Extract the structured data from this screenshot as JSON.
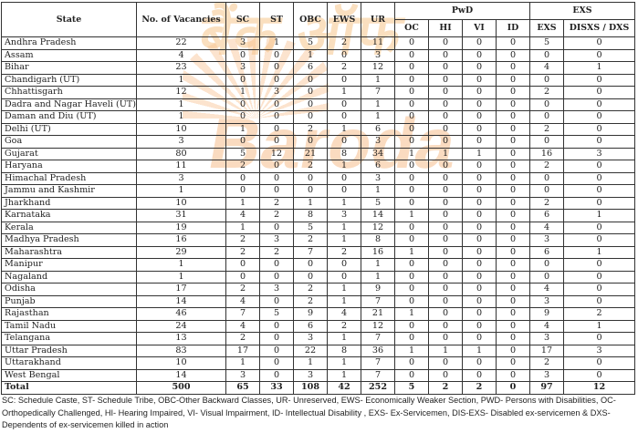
{
  "watermark": {
    "line1": "बैंक ऑफ",
    "line2": "Baroda"
  },
  "table": {
    "headers": {
      "state": "State",
      "vacancies": "No. of Vacancies",
      "sc": "SC",
      "st": "ST",
      "obc": "OBC",
      "ews": "EWS",
      "ur": "UR",
      "pwd_group": "PwD",
      "pwd": [
        "OC",
        "HI",
        "VI",
        "ID"
      ],
      "exs_group": "EXS",
      "exs": [
        "EXS",
        "DISXS / DXS"
      ]
    },
    "rows": [
      [
        "Andhra Pradesh",
        "22",
        "3",
        "1",
        "5",
        "2",
        "11",
        "0",
        "0",
        "0",
        "0",
        "5",
        "0"
      ],
      [
        "Assam",
        "4",
        "0",
        "0",
        "1",
        "0",
        "3",
        "0",
        "0",
        "0",
        "0",
        "0",
        "0"
      ],
      [
        "Bihar",
        "23",
        "3",
        "0",
        "6",
        "2",
        "12",
        "0",
        "0",
        "0",
        "0",
        "4",
        "1"
      ],
      [
        "Chandigarh (UT)",
        "1",
        "0",
        "0",
        "0",
        "0",
        "1",
        "0",
        "0",
        "0",
        "0",
        "0",
        "0"
      ],
      [
        "Chhattisgarh",
        "12",
        "1",
        "3",
        "0",
        "1",
        "7",
        "0",
        "0",
        "0",
        "0",
        "2",
        "0"
      ],
      [
        "Dadra and Nagar Haveli (UT)",
        "1",
        "0",
        "0",
        "0",
        "0",
        "1",
        "0",
        "0",
        "0",
        "0",
        "0",
        "0"
      ],
      [
        "Daman and Diu (UT)",
        "1",
        "0",
        "0",
        "0",
        "0",
        "1",
        "0",
        "0",
        "0",
        "0",
        "0",
        "0"
      ],
      [
        "Delhi (UT)",
        "10",
        "1",
        "0",
        "2",
        "1",
        "6",
        "0",
        "0",
        "0",
        "0",
        "2",
        "0"
      ],
      [
        "Goa",
        "3",
        "0",
        "0",
        "0",
        "0",
        "3",
        "0",
        "0",
        "0",
        "0",
        "0",
        "0"
      ],
      [
        "Gujarat",
        "80",
        "5",
        "12",
        "21",
        "8",
        "34",
        "1",
        "1",
        "1",
        "0",
        "16",
        "3"
      ],
      [
        "Haryana",
        "11",
        "2",
        "0",
        "2",
        "1",
        "6",
        "0",
        "0",
        "0",
        "0",
        "2",
        "0"
      ],
      [
        "Himachal Pradesh",
        "3",
        "0",
        "0",
        "0",
        "0",
        "3",
        "0",
        "0",
        "0",
        "0",
        "0",
        "0"
      ],
      [
        "Jammu and Kashmir",
        "1",
        "0",
        "0",
        "0",
        "0",
        "1",
        "0",
        "0",
        "0",
        "0",
        "0",
        "0"
      ],
      [
        "Jharkhand",
        "10",
        "1",
        "2",
        "1",
        "1",
        "5",
        "0",
        "0",
        "0",
        "0",
        "2",
        "0"
      ],
      [
        "Karnataka",
        "31",
        "4",
        "2",
        "8",
        "3",
        "14",
        "1",
        "0",
        "0",
        "0",
        "6",
        "1"
      ],
      [
        "Kerala",
        "19",
        "1",
        "0",
        "5",
        "1",
        "12",
        "0",
        "0",
        "0",
        "0",
        "4",
        "0"
      ],
      [
        "Madhya Pradesh",
        "16",
        "2",
        "3",
        "2",
        "1",
        "8",
        "0",
        "0",
        "0",
        "0",
        "3",
        "0"
      ],
      [
        "Maharashtra",
        "29",
        "2",
        "2",
        "7",
        "2",
        "16",
        "1",
        "0",
        "0",
        "0",
        "6",
        "1"
      ],
      [
        "Manipur",
        "1",
        "0",
        "0",
        "0",
        "0",
        "1",
        "0",
        "0",
        "0",
        "0",
        "0",
        "0"
      ],
      [
        "Nagaland",
        "1",
        "0",
        "0",
        "0",
        "0",
        "1",
        "0",
        "0",
        "0",
        "0",
        "0",
        "0"
      ],
      [
        "Odisha",
        "17",
        "2",
        "3",
        "2",
        "1",
        "9",
        "0",
        "0",
        "0",
        "0",
        "4",
        "0"
      ],
      [
        "Punjab",
        "14",
        "4",
        "0",
        "2",
        "1",
        "7",
        "0",
        "0",
        "0",
        "0",
        "3",
        "0"
      ],
      [
        "Rajasthan",
        "46",
        "7",
        "5",
        "9",
        "4",
        "21",
        "1",
        "0",
        "0",
        "0",
        "9",
        "2"
      ],
      [
        "Tamil Nadu",
        "24",
        "4",
        "0",
        "6",
        "2",
        "12",
        "0",
        "0",
        "0",
        "0",
        "4",
        "1"
      ],
      [
        "Telangana",
        "13",
        "2",
        "0",
        "3",
        "1",
        "7",
        "0",
        "0",
        "0",
        "0",
        "3",
        "0"
      ],
      [
        "Uttar Pradesh",
        "83",
        "17",
        "0",
        "22",
        "8",
        "36",
        "1",
        "1",
        "1",
        "0",
        "17",
        "3"
      ],
      [
        "Uttarakhand",
        "10",
        "1",
        "0",
        "1",
        "1",
        "7",
        "0",
        "0",
        "0",
        "0",
        "2",
        "0"
      ],
      [
        "West Bengal",
        "14",
        "3",
        "0",
        "3",
        "1",
        "7",
        "0",
        "0",
        "0",
        "0",
        "3",
        "0"
      ]
    ],
    "total": [
      "Total",
      "500",
      "65",
      "33",
      "108",
      "42",
      "252",
      "5",
      "2",
      "2",
      "0",
      "97",
      "12"
    ]
  },
  "legend": "SC: Schedule Caste, ST- Schedule Tribe, OBC-Other Backward Classes, UR- Unreserved, EWS- Economically Weaker Section, PWD- Persons with Disabilities, OC- Orthopedically Challenged, HI- Hearing Impaired, VI- Visual Impairment, ID- Intellectual Disability , EXS- Ex-Servicemen, DIS-EXS- Disabled ex-servicemen & DXS- Dependents of ex-servicemen killed in action"
}
